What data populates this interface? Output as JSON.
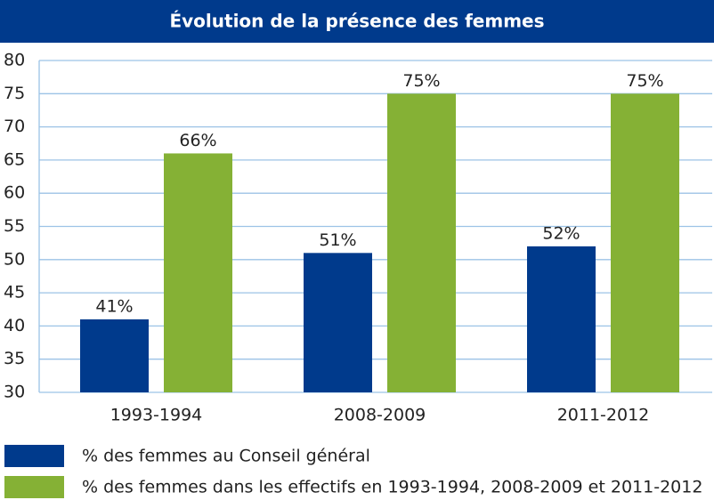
{
  "chart_data": {
    "type": "bar",
    "title": "Évolution de la présence des femmes",
    "categories": [
      "1993-1994",
      "2008-2009",
      "2011-2012"
    ],
    "series": [
      {
        "name": "% des femmes au Conseil général",
        "color": "#003a8c",
        "values": [
          41,
          51,
          52
        ],
        "value_labels": [
          "41%",
          "51%",
          "52%"
        ]
      },
      {
        "name": "% des femmes dans les effectifs en 1993-1994, 2008-2009 et 2011-2012",
        "color": "#85b135",
        "values": [
          66,
          75,
          75
        ],
        "value_labels": [
          "66%",
          "75%",
          "75%"
        ]
      }
    ],
    "ylim": [
      30,
      80
    ],
    "yticks": [
      30,
      35,
      40,
      45,
      50,
      55,
      60,
      65,
      70,
      75,
      80
    ],
    "grid": true
  }
}
